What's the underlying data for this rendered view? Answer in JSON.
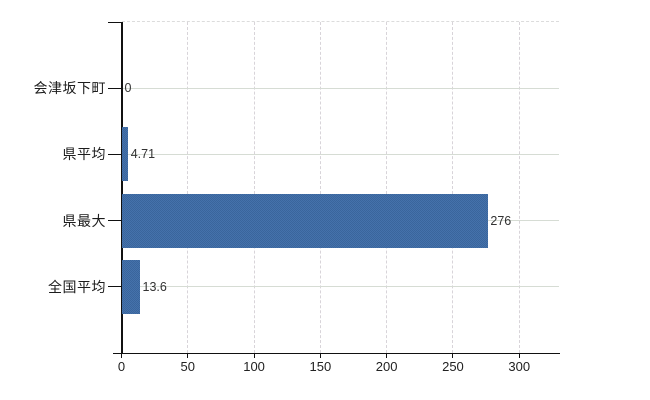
{
  "chart_data": {
    "type": "bar",
    "orientation": "horizontal",
    "title": "",
    "xlabel": "",
    "ylabel": "",
    "categories": [
      "会津坂下町",
      "県平均",
      "県最大",
      "全国平均"
    ],
    "values": [
      0,
      4.71,
      276,
      13.6
    ],
    "value_labels": [
      "0",
      "4.71",
      "276",
      "13.6"
    ],
    "xlim": [
      0,
      330
    ],
    "x_tick_values": [
      0,
      50,
      100,
      150,
      200,
      250,
      300
    ],
    "x_tick_labels": [
      "0",
      "50",
      "100",
      "150",
      "200",
      "250",
      "300"
    ],
    "grid": "horizontal solid at category rows, vertical dashed at 50-unit ticks",
    "legend_position": "none",
    "colors": {
      "bar": "#3f6ba4",
      "bar_dither_light": "#4572ab",
      "bar_dither_dark": "#3a659c",
      "axis": "#111111",
      "grid_horizontal": "#d6dcd4",
      "grid_vertical": "#d8d4d9",
      "plot_top_border": "#dcdcdc",
      "category_text": "#1c1c1c",
      "value_text": "#333333",
      "tick_text": "#222222",
      "background": "#ffffff"
    }
  }
}
